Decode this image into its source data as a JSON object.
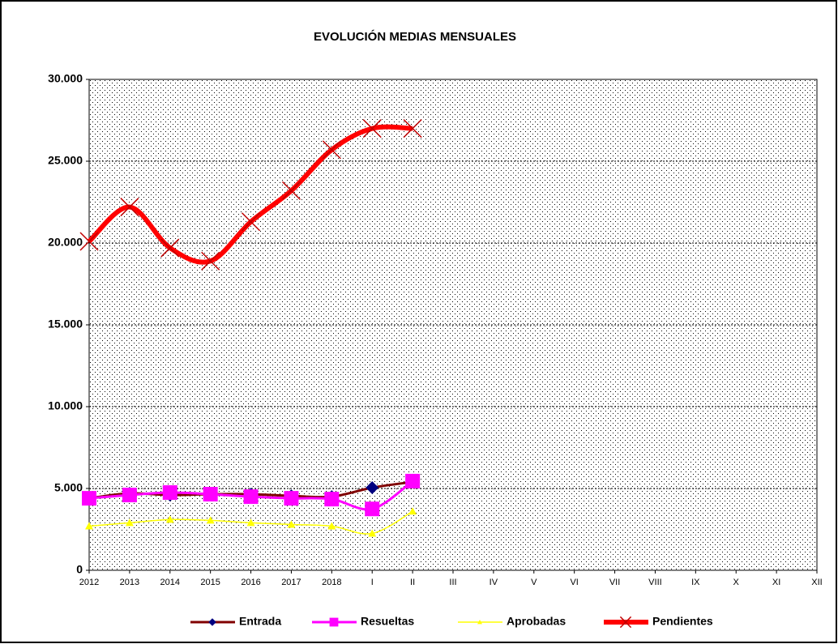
{
  "chart_data": {
    "type": "line",
    "title": "EVOLUCIÓN MEDIAS MENSUALES",
    "categories": [
      "2012",
      "2013",
      "2014",
      "2015",
      "2016",
      "2017",
      "2018",
      "I",
      "II",
      "III",
      "IV",
      "V",
      "VI",
      "VII",
      "VIII",
      "IX",
      "X",
      "XI",
      "XII"
    ],
    "ylim": [
      0,
      30000
    ],
    "yticks": [
      0,
      {
        "value": 5000,
        "label": "5.000"
      },
      {
        "value": 10000,
        "label": "10.000"
      },
      {
        "value": 15000,
        "label": "15.000"
      },
      {
        "value": 20000,
        "label": "20.000"
      },
      {
        "value": 25000,
        "label": "25.000"
      },
      {
        "value": 30000,
        "label": "30.000"
      }
    ],
    "grid": true,
    "legend": "bottom",
    "series": [
      {
        "name": "Entrada",
        "color": "#800000",
        "marker_color": "#000080",
        "marker": "diamond",
        "values": [
          4400,
          4700,
          4600,
          4650,
          4650,
          4550,
          4500,
          5050,
          5400,
          null,
          null,
          null,
          null,
          null,
          null,
          null,
          null,
          null,
          null
        ]
      },
      {
        "name": "Resueltas",
        "color": "#ff00ff",
        "marker_color": "#ff00ff",
        "marker": "square",
        "values": [
          4400,
          4600,
          4750,
          4650,
          4500,
          4400,
          4350,
          3750,
          5450,
          null,
          null,
          null,
          null,
          null,
          null,
          null,
          null,
          null,
          null
        ]
      },
      {
        "name": "Aprobadas",
        "color": "#ffff00",
        "marker_color": "#ffff00",
        "marker": "triangle",
        "values": [
          2700,
          2900,
          3100,
          3050,
          2900,
          2800,
          2700,
          2250,
          3600,
          null,
          null,
          null,
          null,
          null,
          null,
          null,
          null,
          null,
          null
        ]
      },
      {
        "name": "Pendientes",
        "color": "#ff0000",
        "marker_color": "#c00000",
        "marker": "x",
        "values": [
          20100,
          22200,
          19700,
          18900,
          21300,
          23200,
          25700,
          27000,
          27000,
          null,
          null,
          null,
          null,
          null,
          null,
          null,
          null,
          null,
          null
        ]
      }
    ]
  }
}
